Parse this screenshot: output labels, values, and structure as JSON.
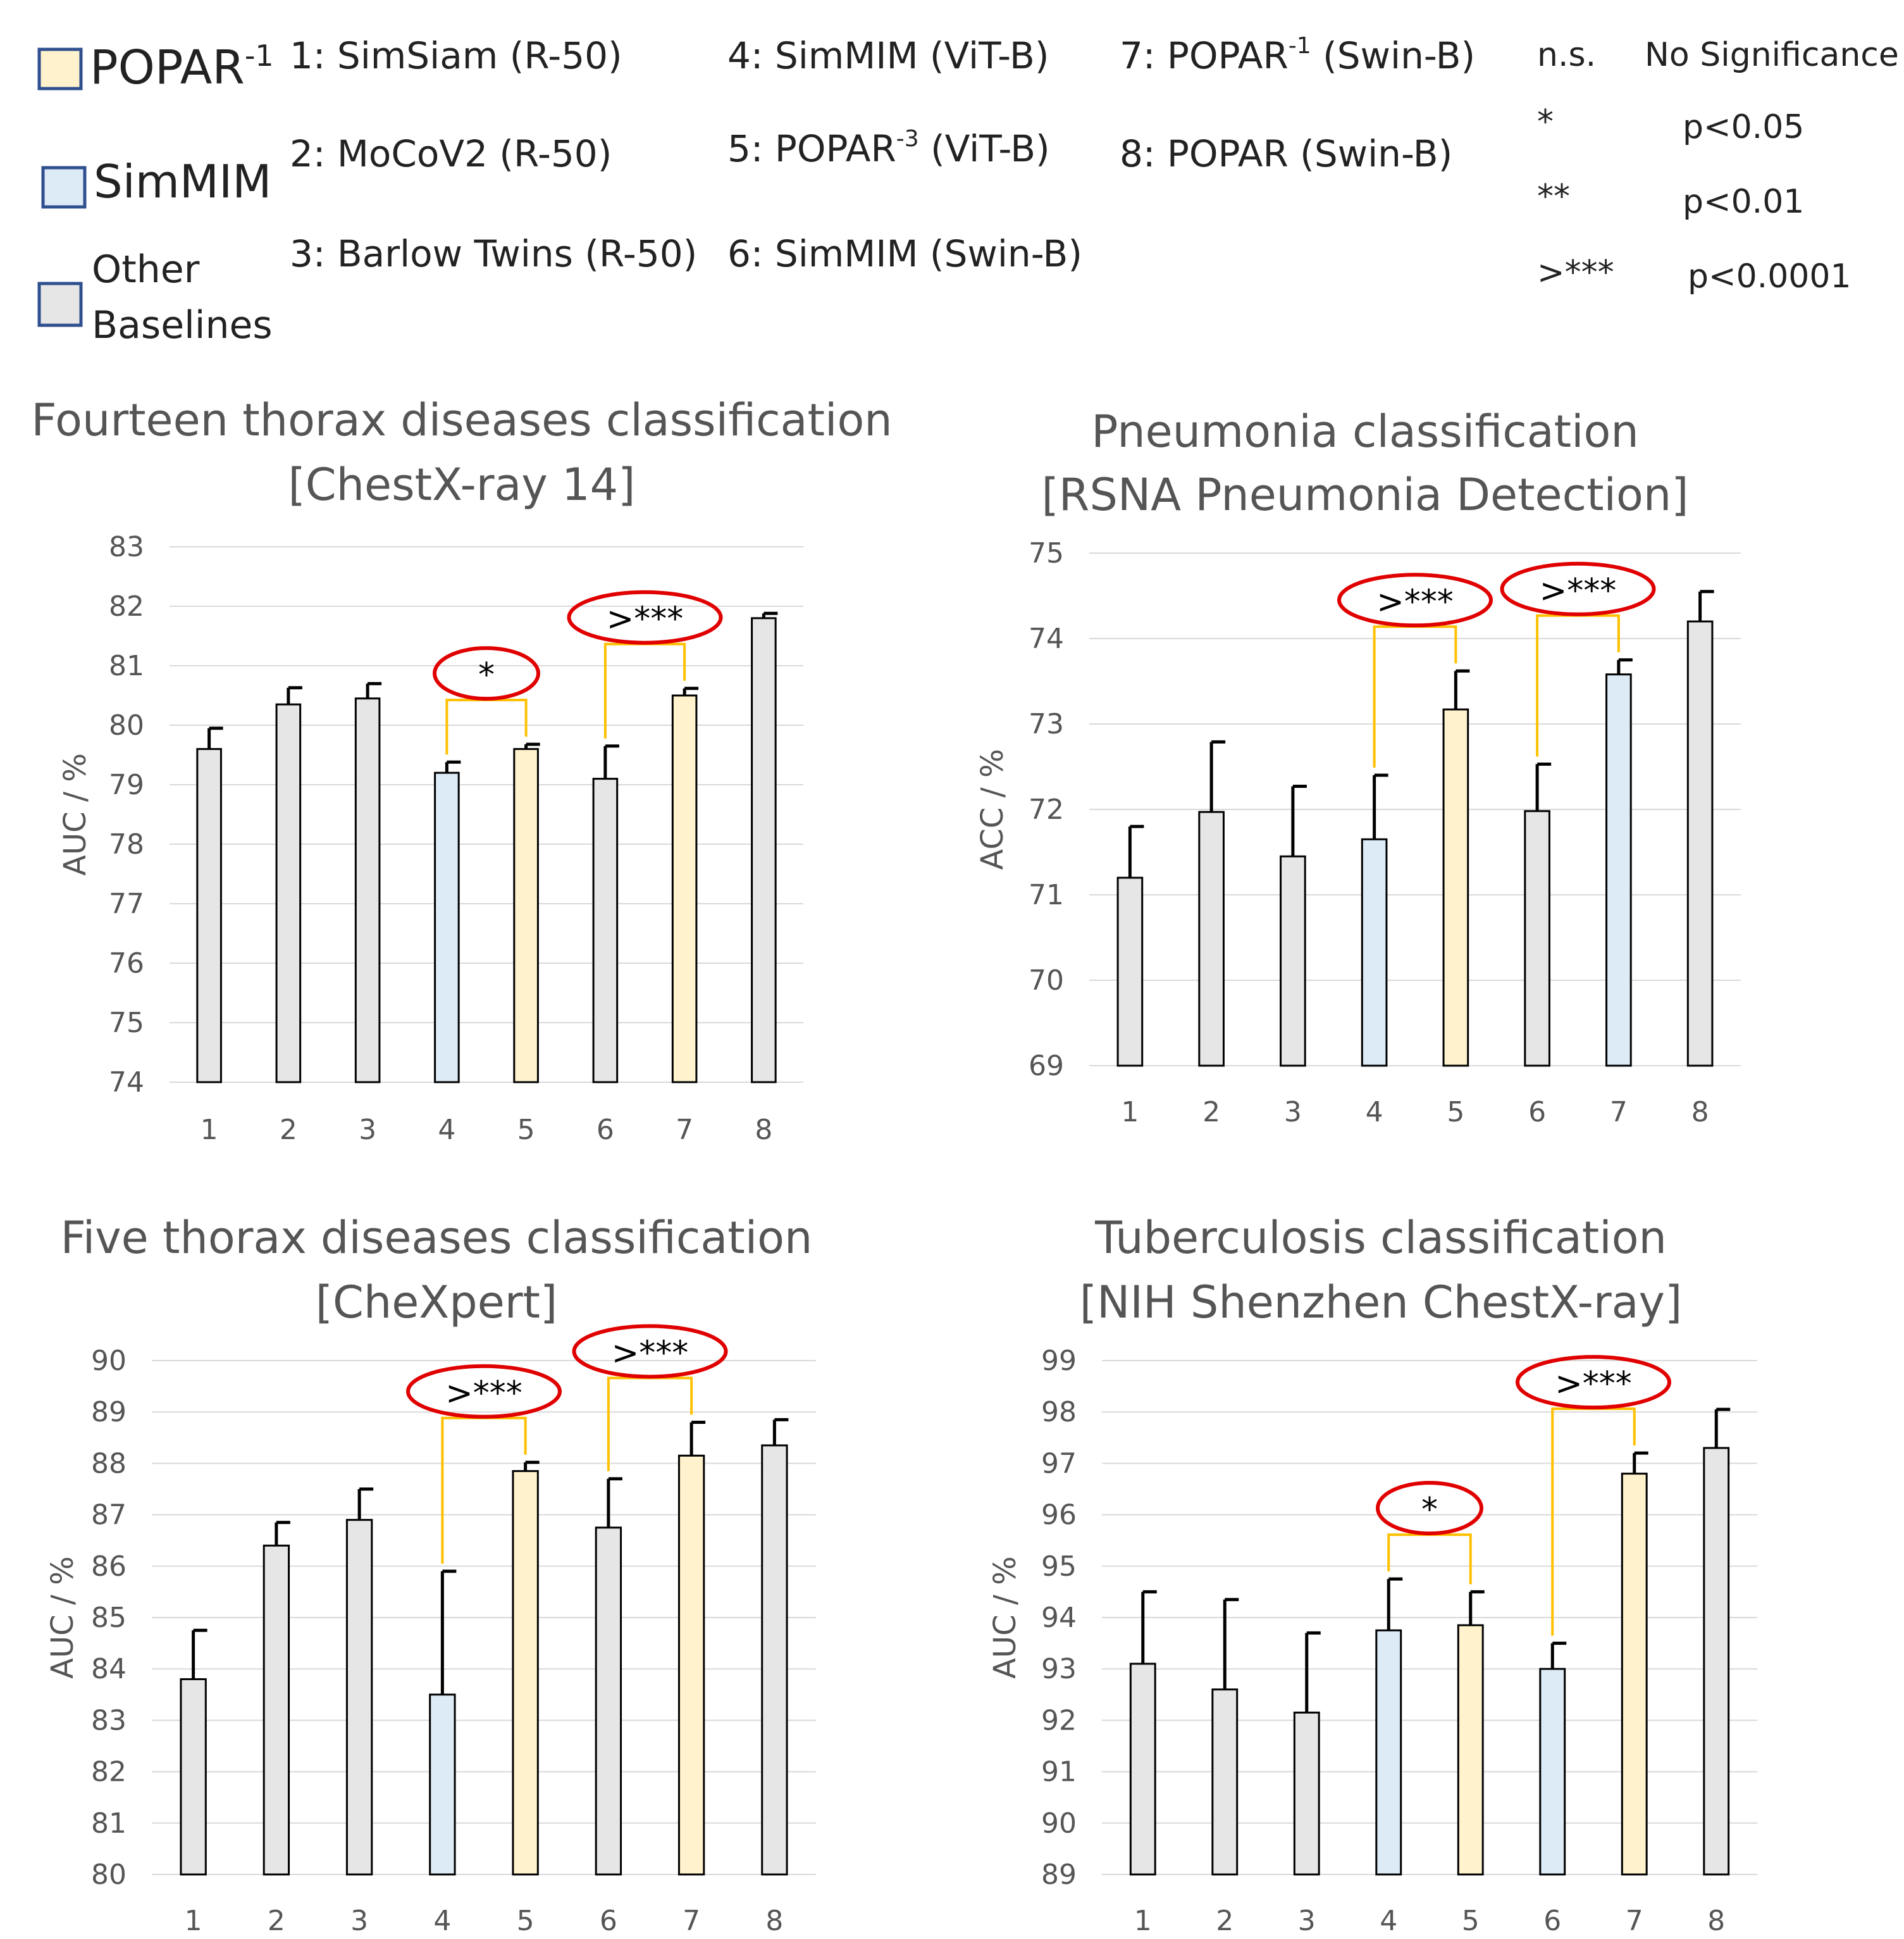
{
  "legend": {
    "items": [
      {
        "name": "POPAR",
        "sup": "-1",
        "color": "#fff2cc"
      },
      {
        "name": "SimMIM",
        "sup": "",
        "color": "#ddebf7"
      },
      {
        "name": "Other",
        "line2": "Baselines",
        "sup": "",
        "color": "#e7e6e6"
      }
    ],
    "methods": [
      {
        "pre": "1: SimSiam (R-50)",
        "sup": "",
        "post": ""
      },
      {
        "pre": "2: MoCoV2 (R-50)",
        "sup": "",
        "post": ""
      },
      {
        "pre": "3: Barlow Twins (R-50)",
        "sup": "",
        "post": ""
      },
      {
        "pre": "4: SimMIM (ViT-B)",
        "sup": "",
        "post": ""
      },
      {
        "pre": "5: POPAR",
        "sup": "-3",
        "post": " (ViT-B)"
      },
      {
        "pre": "6: SimMIM (Swin-B)",
        "sup": "",
        "post": ""
      },
      {
        "pre": "7: POPAR",
        "sup": "-1",
        "post": " (Swin-B)"
      },
      {
        "pre": "8: POPAR (Swin-B)",
        "sup": "",
        "post": ""
      }
    ],
    "significance": [
      {
        "symbol": "n.s.",
        "meaning": "No Significance"
      },
      {
        "symbol": "*",
        "meaning": "p<0.05"
      },
      {
        "symbol": "**",
        "meaning": "p<0.01"
      },
      {
        "symbol": ">***",
        "meaning": "p<0.0001"
      }
    ]
  },
  "colors": {
    "popar": "#fff2cc",
    "simmim": "#ddebf7",
    "other": "#e7e6e6",
    "bracket": "#ffc000",
    "ellipse": "#e00000",
    "legend_border": "#2f4f8f"
  },
  "chart_data": [
    {
      "type": "bar",
      "title": "Fourteen thorax diseases classification",
      "subtitle": "[ChestX-ray 14]",
      "ylabel": "AUC / %",
      "ylim": [
        74,
        83
      ],
      "ystep": 1,
      "categories": [
        "1",
        "2",
        "3",
        "4",
        "5",
        "6",
        "7",
        "8"
      ],
      "values": [
        79.6,
        80.35,
        80.45,
        79.2,
        79.6,
        79.1,
        80.5,
        81.8
      ],
      "errors": [
        0.35,
        0.28,
        0.25,
        0.18,
        0.08,
        0.55,
        0.12,
        0.08
      ],
      "bar_groups": [
        "other",
        "other",
        "other",
        "simmim",
        "popar",
        "other",
        "popar",
        "other"
      ],
      "significance": [
        {
          "from": 4,
          "to": 5,
          "label": "*"
        },
        {
          "from": 6,
          "to": 7,
          "label": ">***"
        }
      ],
      "grid": true
    },
    {
      "type": "bar",
      "title": "Pneumonia classification",
      "subtitle": "[RSNA Pneumonia Detection]",
      "ylabel": "ACC / %",
      "ylim": [
        69,
        75
      ],
      "ystep": 1,
      "categories": [
        "1",
        "2",
        "3",
        "4",
        "5",
        "6",
        "7",
        "8"
      ],
      "values": [
        71.2,
        71.97,
        71.45,
        71.65,
        73.17,
        71.98,
        73.58,
        74.2
      ],
      "errors": [
        0.6,
        0.82,
        0.82,
        0.75,
        0.45,
        0.55,
        0.17,
        0.35
      ],
      "bar_groups": [
        "other",
        "other",
        "other",
        "simmim",
        "popar",
        "other",
        "simmim",
        "other"
      ],
      "significance": [
        {
          "from": 4,
          "to": 5,
          "label": ">***"
        },
        {
          "from": 6,
          "to": 7,
          "label": ">***"
        }
      ],
      "grid": true
    },
    {
      "type": "bar",
      "title": "Five thorax diseases classification",
      "subtitle": "[CheXpert]",
      "ylabel": "AUC / %",
      "ylim": [
        80,
        90
      ],
      "ystep": 1,
      "categories": [
        "1",
        "2",
        "3",
        "4",
        "5",
        "6",
        "7",
        "8"
      ],
      "values": [
        83.8,
        86.4,
        86.9,
        83.5,
        87.85,
        86.75,
        88.15,
        88.35
      ],
      "errors": [
        0.95,
        0.45,
        0.6,
        2.4,
        0.17,
        0.95,
        0.65,
        0.5
      ],
      "bar_groups": [
        "other",
        "other",
        "other",
        "simmim",
        "popar",
        "other",
        "popar",
        "other"
      ],
      "significance": [
        {
          "from": 4,
          "to": 5,
          "label": ">***"
        },
        {
          "from": 6,
          "to": 7,
          "label": ">***"
        }
      ],
      "grid": true
    },
    {
      "type": "bar",
      "title": "Tuberculosis classification",
      "subtitle": "[NIH Shenzhen ChestX-ray]",
      "ylabel": "AUC / %",
      "ylim": [
        89,
        99
      ],
      "ystep": 1,
      "categories": [
        "1",
        "2",
        "3",
        "4",
        "5",
        "6",
        "7",
        "8"
      ],
      "values": [
        93.1,
        92.6,
        92.15,
        93.75,
        93.85,
        93.0,
        96.8,
        97.3
      ],
      "errors": [
        1.4,
        1.75,
        1.55,
        1.0,
        0.65,
        0.5,
        0.4,
        0.75
      ],
      "bar_groups": [
        "other",
        "other",
        "other",
        "simmim",
        "popar",
        "simmim",
        "popar",
        "other"
      ],
      "significance": [
        {
          "from": 4,
          "to": 5,
          "label": "*"
        },
        {
          "from": 6,
          "to": 7,
          "label": ">***"
        }
      ],
      "grid": true
    }
  ]
}
